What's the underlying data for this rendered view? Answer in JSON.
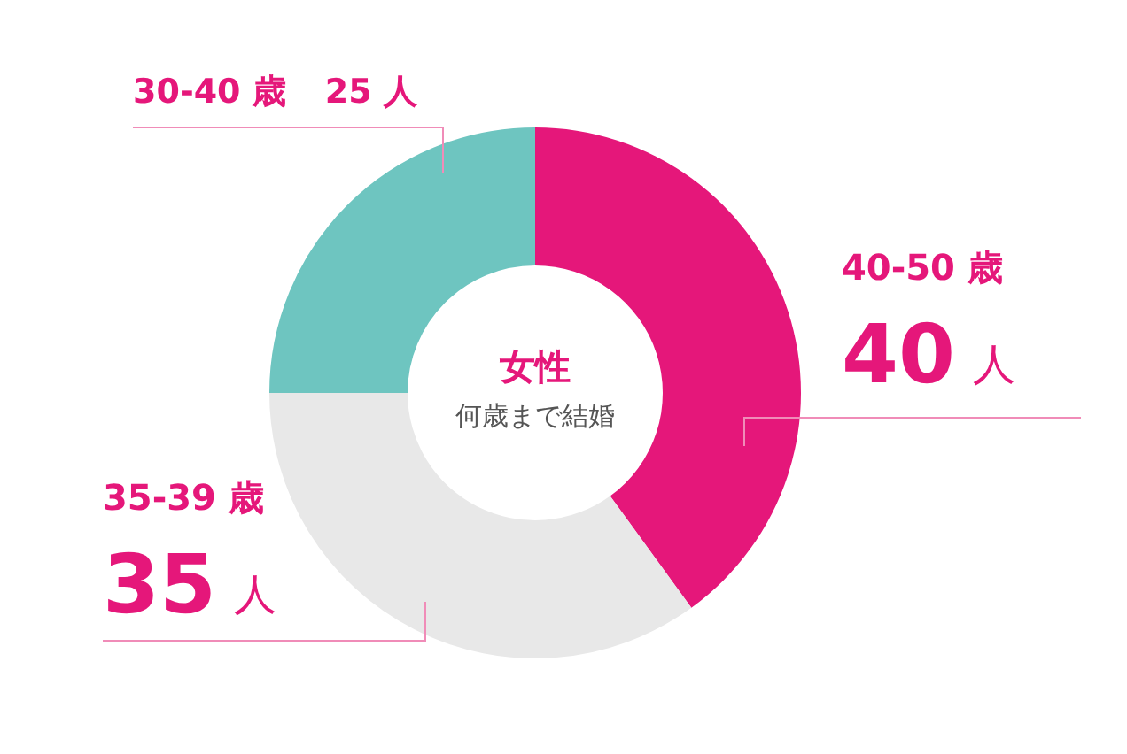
{
  "chart_data": {
    "type": "donut",
    "title": "女性",
    "subtitle": "何歳まで結婚",
    "categories": [
      "40-50 歳",
      "35-39 歳",
      "30-40 歳"
    ],
    "values": [
      40,
      35,
      25
    ],
    "value_labels": [
      "40 人",
      "35 人",
      "25 人"
    ],
    "colors": [
      "#e5177a",
      "#e8e8e8",
      "#6ec5c0"
    ],
    "legend": false
  }
}
